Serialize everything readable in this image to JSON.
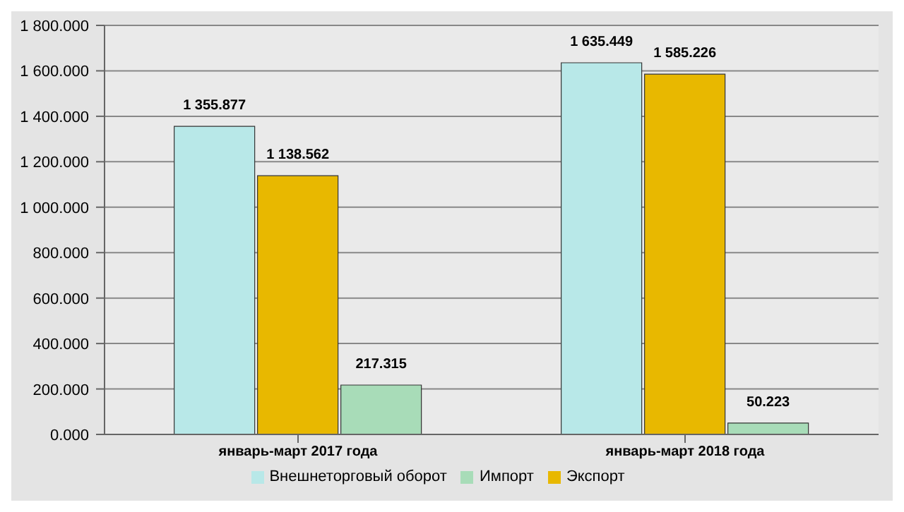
{
  "chart_data": {
    "type": "bar",
    "categories": [
      "январь-март 2017 года",
      "январь-март 2018 года"
    ],
    "series": [
      {
        "name": "Внешнеторговый оборот",
        "color": "#b8e8e8",
        "values": [
          1355.877,
          1635.449
        ],
        "value_labels": [
          "1 355.877",
          "1 635.449"
        ]
      },
      {
        "name": "Экспорт",
        "color": "#e8b800",
        "values": [
          1138.562,
          1585.226
        ],
        "value_labels": [
          "1 138.562",
          "1 585.226"
        ]
      },
      {
        "name": "Импорт",
        "color": "#a8dcb8",
        "values": [
          217.315,
          50.223
        ],
        "value_labels": [
          "217.315",
          "50.223"
        ]
      }
    ],
    "ylim": [
      0,
      1800
    ],
    "yticks": [
      {
        "value": 0,
        "label": "0.000"
      },
      {
        "value": 200,
        "label": "200.000"
      },
      {
        "value": 400,
        "label": "400.000"
      },
      {
        "value": 600,
        "label": "600.000"
      },
      {
        "value": 800,
        "label": "800.000"
      },
      {
        "value": 1000,
        "label": "1 000.000"
      },
      {
        "value": 1200,
        "label": "1 200.000"
      },
      {
        "value": 1400,
        "label": "1 400.000"
      },
      {
        "value": 1600,
        "label": "1 600.000"
      },
      {
        "value": 1800,
        "label": "1 800.000"
      }
    ],
    "grid": "y",
    "legend": "bottom"
  }
}
